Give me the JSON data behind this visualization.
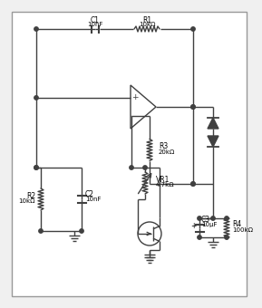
{
  "bg_color": "#f0f0f0",
  "line_color": "#404040",
  "border_color": "#808080",
  "text_color": "#000000",
  "components": {
    "C1": {
      "label": "C1",
      "value": "10nF"
    },
    "C2": {
      "label": "C2",
      "value": "10nF"
    },
    "C3": {
      "label": "C3",
      "value": "10µF"
    },
    "R1": {
      "label": "R1",
      "value": "10kΩ"
    },
    "R2": {
      "label": "R2",
      "value": "10kΩ"
    },
    "R3": {
      "label": "R3",
      "value": "20kΩ"
    },
    "R4": {
      "label": "R4",
      "value": "100kΩ"
    },
    "VR1": {
      "label": "VR1",
      "value": "4.7kΩ"
    }
  }
}
